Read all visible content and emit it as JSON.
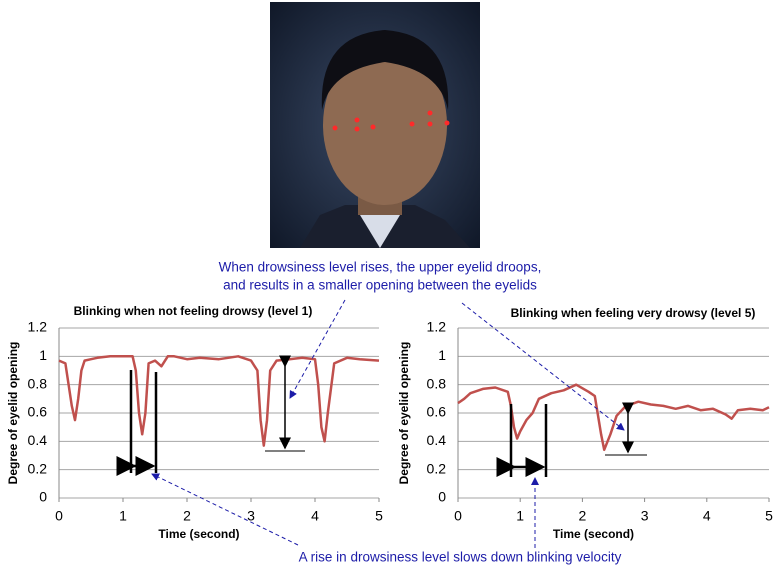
{
  "chart_data": [
    {
      "type": "line",
      "title": "Blinking when not feeling drowsy (level 1)",
      "x_label": "Time (second)",
      "y_label": "Degree of eyelid opening",
      "color": "#c0504d",
      "x": [
        0,
        0.1,
        0.15,
        0.2,
        0.25,
        0.3,
        0.35,
        0.4,
        0.5,
        0.6,
        0.8,
        1.0,
        1.15,
        1.2,
        1.25,
        1.3,
        1.35,
        1.4,
        1.5,
        1.6,
        1.7,
        1.8,
        2.0,
        2.2,
        2.5,
        2.8,
        3.0,
        3.1,
        3.15,
        3.2,
        3.25,
        3.3,
        3.4,
        3.6,
        3.8,
        4.0,
        4.05,
        4.1,
        4.15,
        4.2,
        4.3,
        4.5,
        4.7,
        5.0
      ],
      "values": [
        0.97,
        0.95,
        0.8,
        0.65,
        0.55,
        0.7,
        0.9,
        0.97,
        0.98,
        0.99,
        1.0,
        1.0,
        1.0,
        0.9,
        0.6,
        0.45,
        0.6,
        0.95,
        0.97,
        0.93,
        1.0,
        1.0,
        0.98,
        0.99,
        0.98,
        1.0,
        0.97,
        0.9,
        0.55,
        0.37,
        0.55,
        0.9,
        0.97,
        0.98,
        0.99,
        0.98,
        0.8,
        0.5,
        0.4,
        0.6,
        0.95,
        0.99,
        0.98,
        0.97
      ],
      "xlim": [
        0,
        5
      ],
      "xticks": [
        0,
        1,
        2,
        3,
        4,
        5
      ],
      "ylim": [
        0,
        1.2
      ],
      "yticks": [
        0,
        0.2,
        0.4,
        0.6,
        0.8,
        1,
        1.2
      ],
      "grid": true
    },
    {
      "type": "line",
      "title": "Blinking when feeling very drowsy (level 5)",
      "x_label": "Time (second)",
      "y_label": "Degree of eyelid opening",
      "color": "#c0504d",
      "x": [
        0,
        0.1,
        0.2,
        0.4,
        0.6,
        0.8,
        0.85,
        0.9,
        0.95,
        1.0,
        1.1,
        1.2,
        1.3,
        1.5,
        1.7,
        1.9,
        2.1,
        2.2,
        2.3,
        2.35,
        2.45,
        2.55,
        2.7,
        2.9,
        3.1,
        3.3,
        3.5,
        3.7,
        3.9,
        4.1,
        4.3,
        4.4,
        4.5,
        4.7,
        4.9,
        5.0
      ],
      "values": [
        0.67,
        0.7,
        0.74,
        0.77,
        0.78,
        0.75,
        0.65,
        0.5,
        0.42,
        0.47,
        0.55,
        0.6,
        0.7,
        0.74,
        0.76,
        0.8,
        0.75,
        0.72,
        0.45,
        0.34,
        0.45,
        0.58,
        0.65,
        0.68,
        0.66,
        0.65,
        0.63,
        0.65,
        0.62,
        0.63,
        0.59,
        0.56,
        0.62,
        0.63,
        0.62,
        0.64
      ],
      "xlim": [
        0,
        5
      ],
      "xticks": [
        0,
        1,
        2,
        3,
        4,
        5
      ],
      "ylim": [
        0,
        1.2
      ],
      "yticks": [
        0,
        0.2,
        0.4,
        0.6,
        0.8,
        1,
        1.2
      ],
      "grid": true
    }
  ],
  "annotations": [
    "When drowsiness level rises, the upper eyelid droops,",
    "and results in a smaller opening between the eyelids",
    "A rise in drowsiness level slows down blinking velocity"
  ]
}
